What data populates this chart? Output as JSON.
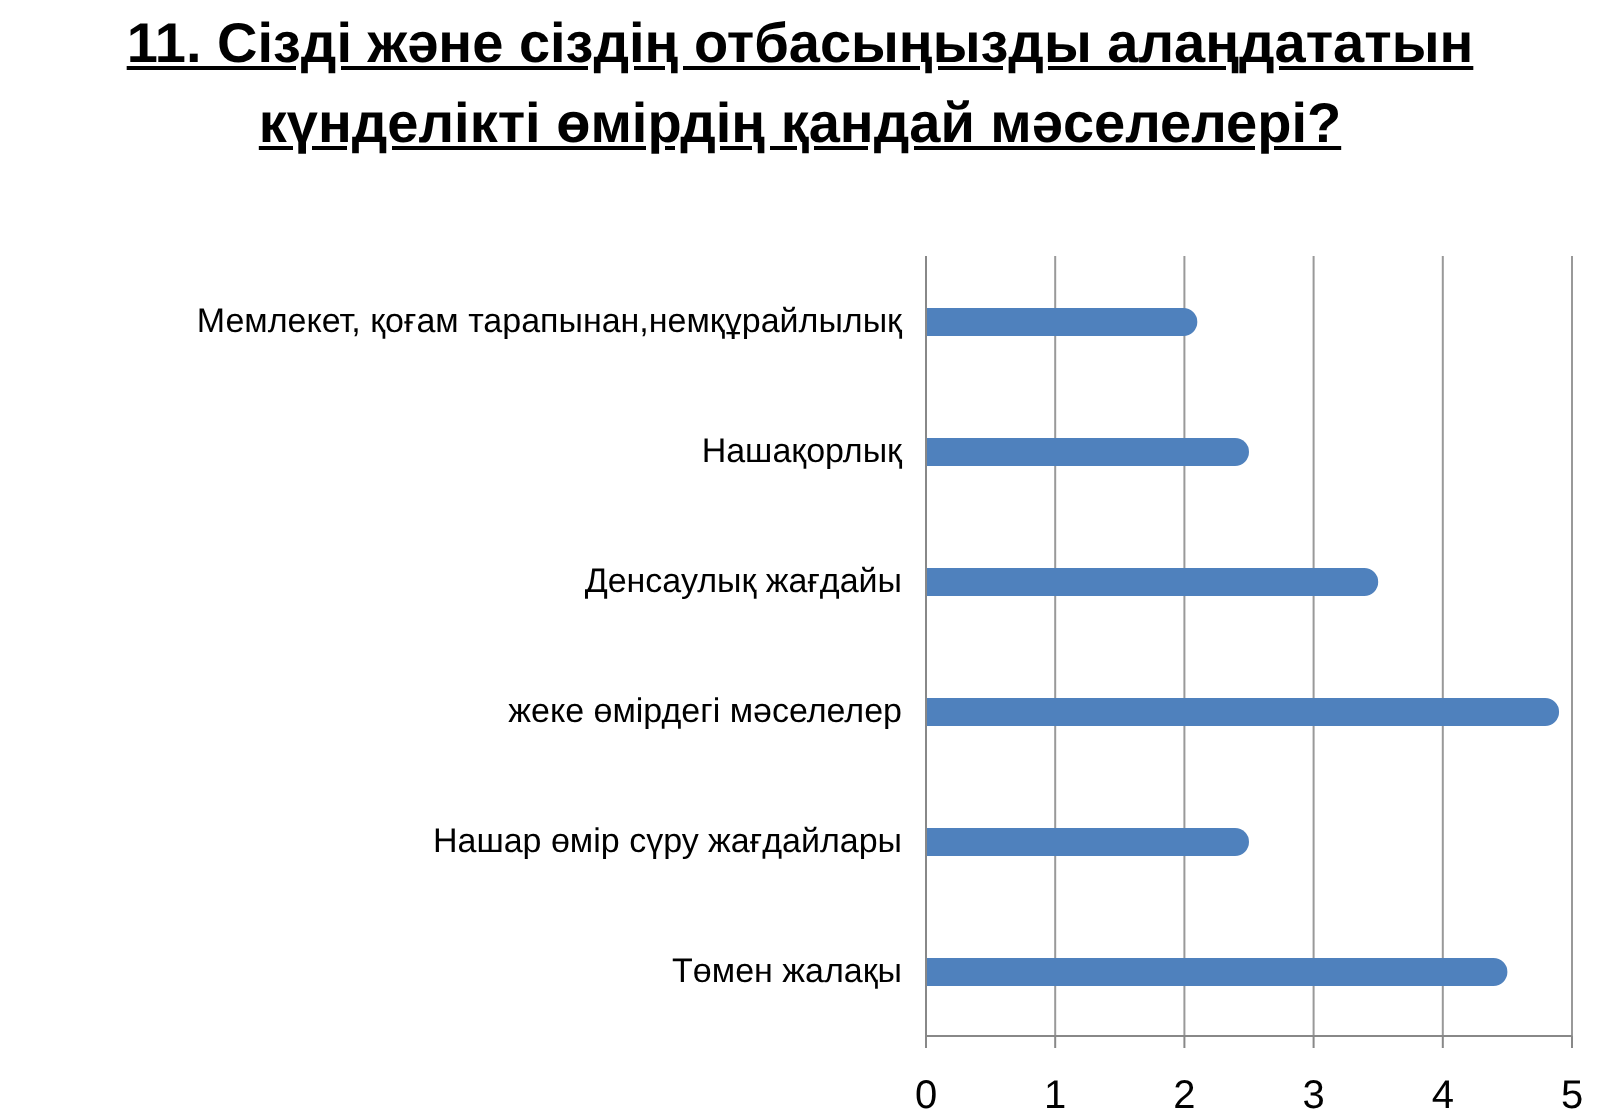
{
  "chart_data": {
    "type": "bar",
    "orientation": "horizontal",
    "title": "11. Сізді және сіздің отбасыңызды алаңдататын күнделікті өмірдің қандай мәселелері?",
    "categories": [
      "Мемлекет, қоғам тарапынан,немқұрайлылық",
      "Нашақорлық",
      "Денсаулық жағдайы",
      "жеке өмірдегі мәселелер",
      "Нашар өмір сүру жағдайлары",
      "Төмен жалақы"
    ],
    "values": [
      2.1,
      2.5,
      3.5,
      4.9,
      2.5,
      4.5
    ],
    "color": "#4f81bd",
    "xlim": [
      0,
      5
    ],
    "xticks": [
      0,
      1,
      2,
      3,
      4,
      5
    ],
    "grid": "x"
  }
}
